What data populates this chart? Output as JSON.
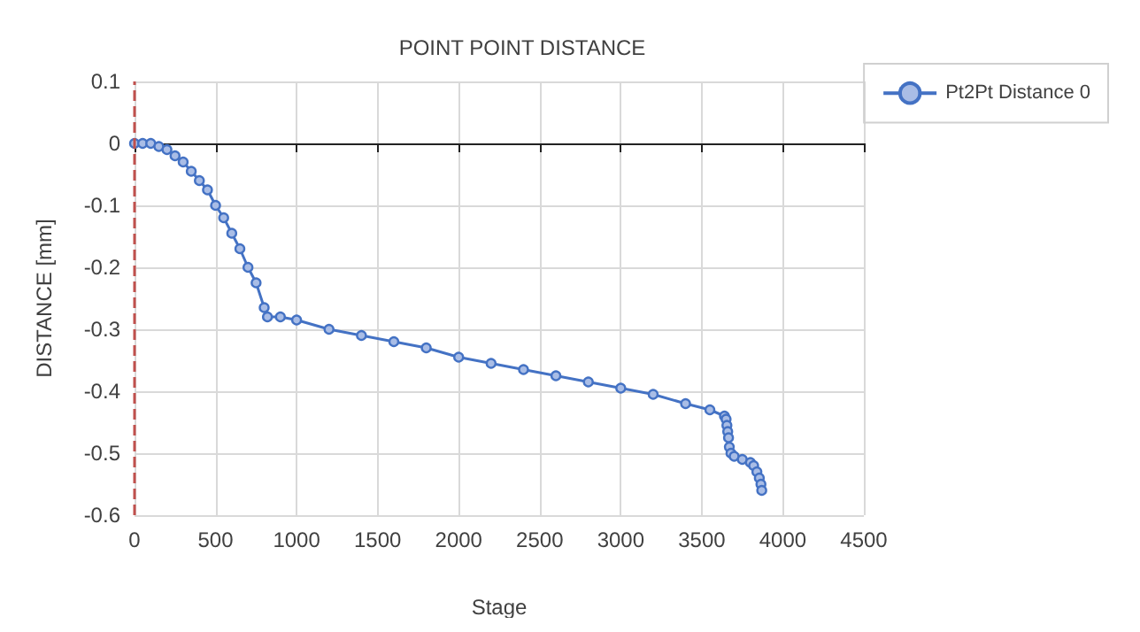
{
  "chart_data": {
    "type": "line",
    "title": "POINT POINT DISTANCE",
    "xlabel": "Stage",
    "ylabel": "DISTANCE [mm]",
    "series": [
      {
        "name": "Pt2Pt Distance 0",
        "color": "#4472c4",
        "x": [
          0,
          50,
          100,
          150,
          200,
          250,
          300,
          350,
          400,
          450,
          500,
          550,
          600,
          650,
          700,
          750,
          800,
          820,
          900,
          1000,
          1200,
          1400,
          1600,
          1800,
          2000,
          2200,
          2400,
          2600,
          2800,
          3000,
          3200,
          3400,
          3550,
          3640,
          3650,
          3655,
          3660,
          3665,
          3670,
          3680,
          3700,
          3750,
          3800,
          3820,
          3840,
          3855,
          3865,
          3870
        ],
        "values": [
          0,
          0,
          0,
          -0.005,
          -0.01,
          -0.02,
          -0.03,
          -0.045,
          -0.06,
          -0.075,
          -0.1,
          -0.12,
          -0.145,
          -0.17,
          -0.2,
          -0.225,
          -0.265,
          -0.28,
          -0.28,
          -0.285,
          -0.3,
          -0.31,
          -0.32,
          -0.33,
          -0.345,
          -0.355,
          -0.365,
          -0.375,
          -0.385,
          -0.395,
          -0.405,
          -0.42,
          -0.43,
          -0.44,
          -0.445,
          -0.455,
          -0.465,
          -0.475,
          -0.49,
          -0.5,
          -0.505,
          -0.51,
          -0.515,
          -0.52,
          -0.53,
          -0.54,
          -0.55,
          -0.56
        ]
      }
    ],
    "xlim": [
      0,
      4500
    ],
    "xticks": [
      0,
      500,
      1000,
      1500,
      2000,
      2500,
      3000,
      3500,
      4000,
      4500
    ],
    "ylim": [
      -0.6,
      0.1
    ],
    "yticks": [
      -0.6,
      -0.5,
      -0.4,
      -0.3,
      -0.2,
      -0.1,
      0,
      0.1
    ],
    "grid": true,
    "legend": "top right",
    "marker": "circle",
    "line_style": "solid",
    "ref_lines": [
      {
        "axis": "x",
        "value": 0,
        "color": "#c0504d",
        "line_style": "dashed"
      }
    ]
  }
}
